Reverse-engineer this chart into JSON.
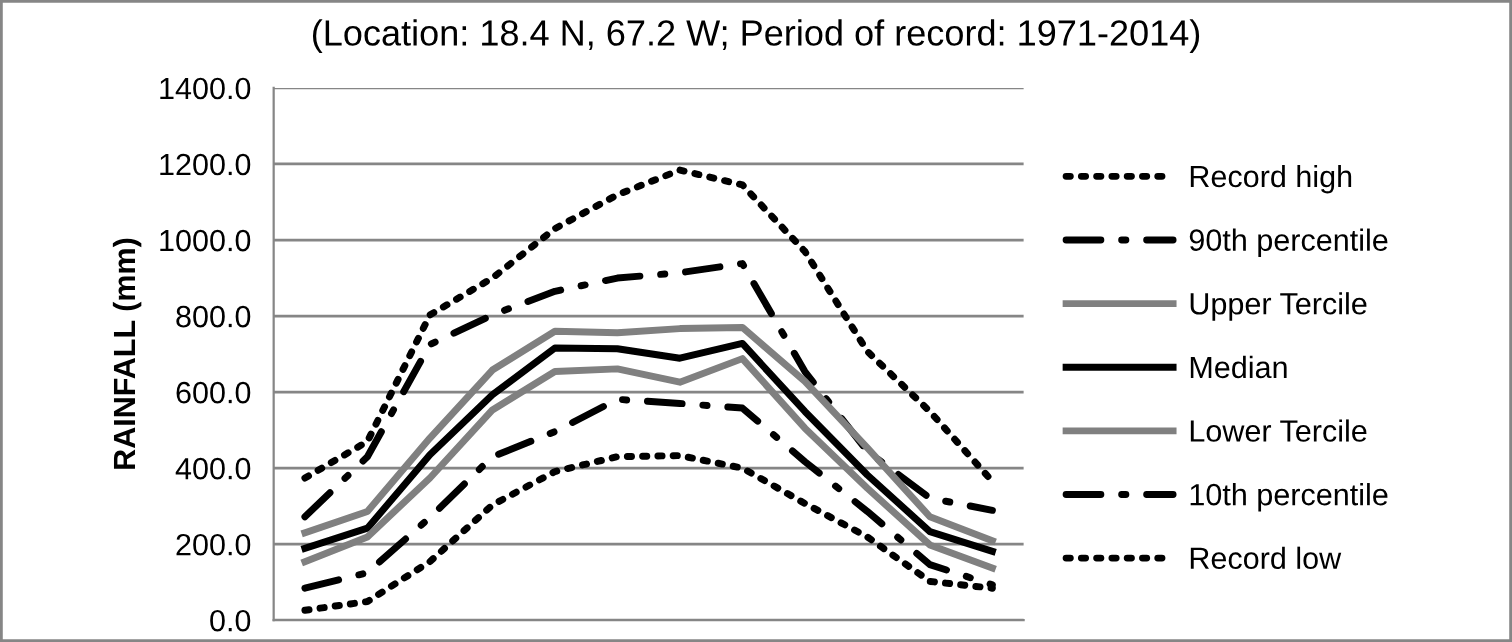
{
  "chart_data": {
    "type": "line",
    "title": "(Location: 18.4 N, 67.2 W; Period of record: 1971-2014)",
    "ylabel": "RAINFALL (mm)",
    "categories": [
      null,
      null,
      null,
      null,
      null,
      null,
      null,
      null,
      null,
      null,
      null,
      null
    ],
    "series": [
      {
        "name": "Record high",
        "color": "#000000",
        "line_style": "dotted",
        "values": [
          374,
          470,
          803,
          900,
          1030,
          1119,
          1184,
          1145,
          970,
          707,
          549,
          365
        ]
      },
      {
        "name": "90th percentile",
        "color": "#000000",
        "line_style": "dashdot",
        "values": [
          272,
          430,
          725,
          803,
          865,
          900,
          914,
          938,
          654,
          444,
          321,
          289
        ]
      },
      {
        "name": "Upper Tercile",
        "color": "#808080",
        "line_style": "solid",
        "values": [
          230,
          286,
          479,
          658,
          760,
          756,
          767,
          770,
          628,
          453,
          272,
          209
        ]
      },
      {
        "name": "Median",
        "color": "#000000",
        "line_style": "solid",
        "values": [
          189,
          242,
          435,
          593,
          716,
          714,
          689,
          728,
          549,
          382,
          233,
          181
        ]
      },
      {
        "name": "Lower Tercile",
        "color": "#808080",
        "line_style": "solid",
        "values": [
          154,
          219,
          374,
          553,
          654,
          661,
          626,
          688,
          505,
          347,
          198,
          137
        ]
      },
      {
        "name": "10th percentile",
        "color": "#000000",
        "line_style": "dashdot",
        "values": [
          84,
          125,
          270,
          430,
          496,
          581,
          570,
          558,
          417,
          286,
          146,
          93
        ]
      },
      {
        "name": "Record low",
        "color": "#000000",
        "line_style": "dotted",
        "values": [
          26,
          49,
          154,
          303,
          391,
          430,
          433,
          400,
          307,
          219,
          102,
          84
        ]
      }
    ],
    "ylim": [
      0,
      1400
    ],
    "yticks": [
      {
        "value": 0,
        "label": "0.0"
      },
      {
        "value": 200,
        "label": "200.0"
      },
      {
        "value": 400,
        "label": "400.0"
      },
      {
        "value": 600,
        "label": "600.0"
      },
      {
        "value": 800,
        "label": "800.0"
      },
      {
        "value": 1000,
        "label": "1000.0"
      },
      {
        "value": 1200,
        "label": "1200.0"
      },
      {
        "value": 1400,
        "label": "1400.0"
      }
    ],
    "grid": "y",
    "legend": "right",
    "tick_labels": "y",
    "marker": "none"
  }
}
